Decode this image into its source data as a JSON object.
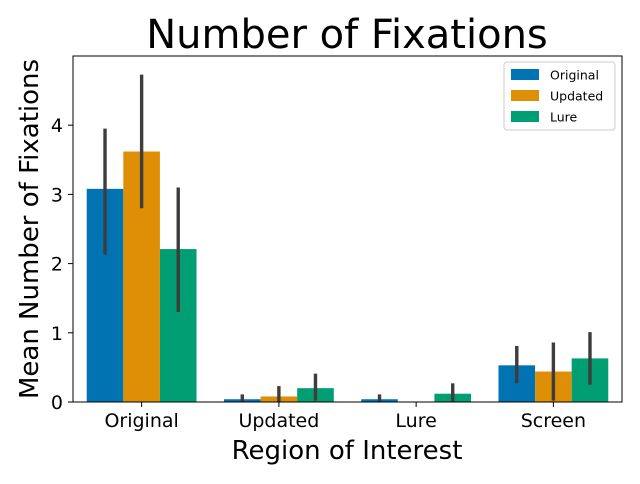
{
  "chart_data": {
    "type": "bar",
    "title": "Number of Fixations",
    "xlabel": "Region of Interest",
    "ylabel": "Mean Number of Fixations",
    "categories": [
      "Original",
      "Updated",
      "Lure",
      "Screen"
    ],
    "ylim": [
      0,
      5
    ],
    "yticks": [
      0,
      1,
      2,
      3,
      4
    ],
    "grid": false,
    "legend_position": "top-right",
    "series": [
      {
        "name": "Original",
        "color": "#0173b2",
        "values": [
          3.08,
          0.04,
          0.04,
          0.53
        ],
        "ci_low": [
          2.13,
          0.0,
          0.0,
          0.27
        ],
        "ci_high": [
          3.95,
          0.11,
          0.11,
          0.81
        ]
      },
      {
        "name": "Updated",
        "color": "#de8f05",
        "values": [
          3.62,
          0.08,
          0.0,
          0.44
        ],
        "ci_low": [
          2.8,
          0.0,
          0.0,
          0.02
        ],
        "ci_high": [
          4.73,
          0.23,
          0.0,
          0.86
        ]
      },
      {
        "name": "Lure",
        "color": "#029e73",
        "values": [
          2.21,
          0.2,
          0.12,
          0.63
        ],
        "ci_low": [
          1.3,
          0.02,
          0.0,
          0.25
        ],
        "ci_high": [
          3.1,
          0.41,
          0.27,
          1.01
        ]
      }
    ]
  }
}
